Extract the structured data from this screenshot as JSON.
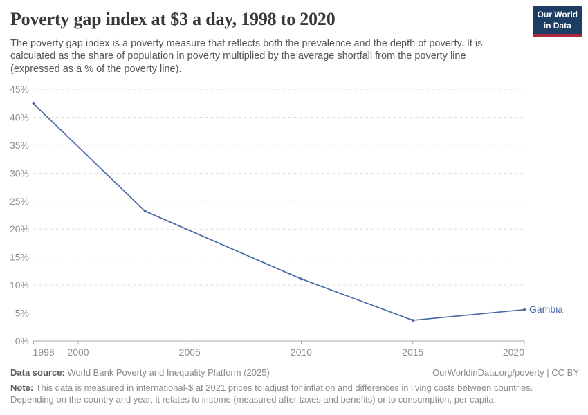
{
  "header": {
    "logo": {
      "line1": "Our World",
      "line2": "in Data",
      "bg_color": "#1d3d63",
      "accent_color": "#b0263e"
    }
  },
  "chart_data": {
    "type": "line",
    "title": "Poverty gap index at $3 a day, 1998 to 2020",
    "subtitle": "The poverty gap index is a poverty measure that reflects both the prevalence and the depth of poverty. It is calculated as the share of population in poverty multiplied by the average shortfall from the poverty line (expressed as a % of the poverty line).",
    "xlabel": "",
    "ylabel": "",
    "xlim": [
      1998,
      2020
    ],
    "ylim": [
      0,
      45
    ],
    "x_ticks": [
      1998,
      2000,
      2005,
      2010,
      2015,
      2020
    ],
    "y_ticks": [
      0,
      5,
      10,
      15,
      20,
      25,
      30,
      35,
      40,
      45
    ],
    "y_tick_suffix": "%",
    "grid": "horizontal-dashed",
    "legend_position": "end-of-line-label",
    "series": [
      {
        "name": "Gambia",
        "color": "#4669a5",
        "points": [
          {
            "x": 1998,
            "y": 42.4
          },
          {
            "x": 2003,
            "y": 23.2
          },
          {
            "x": 2010,
            "y": 11.1
          },
          {
            "x": 2015,
            "y": 3.7
          },
          {
            "x": 2020,
            "y": 5.6
          }
        ]
      }
    ]
  },
  "footer": {
    "datasource_label": "Data source:",
    "datasource_text": " World Bank Poverty and Inequality Platform (2025)",
    "rights": "OurWorldinData.org/poverty | CC BY",
    "note_label": "Note:",
    "note_text": " This data is measured in international-$ at 2021 prices to adjust for inflation and differences in living costs between countries. Depending on the country and year, it relates to income (measured after taxes and benefits) or to consumption, per capita."
  }
}
